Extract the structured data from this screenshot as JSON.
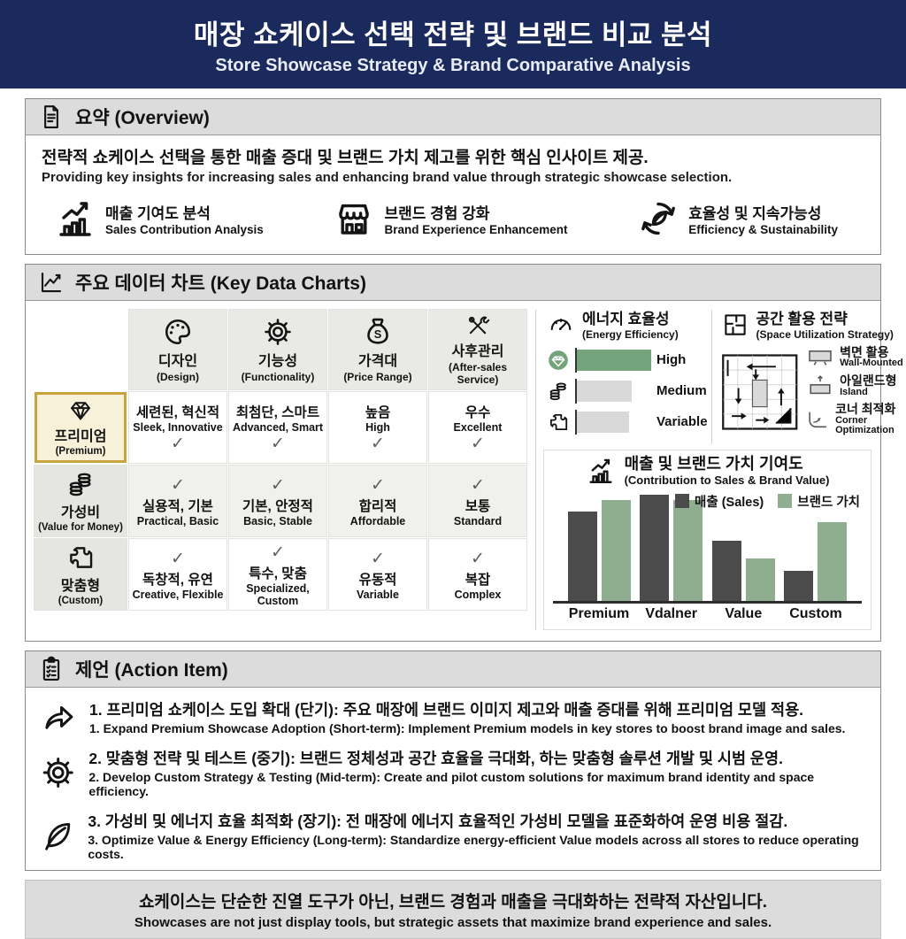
{
  "header": {
    "title_ko": "매장 쇼케이스 선택 전략 및 브랜드 비교 분석",
    "title_en": "Store Showcase Strategy & Brand Comparative Analysis"
  },
  "overview": {
    "heading": "요약 (Overview)",
    "desc_ko": "전략적 쇼케이스 선택을 통한 매출 증대 및 브랜드 가치 제고를 위한 핵심 인사이트 제공.",
    "desc_en": "Providing key insights for increasing sales and enhancing brand value through strategic showcase selection.",
    "features": [
      {
        "ko": "매출 기여도 분석",
        "en": "Sales Contribution Analysis"
      },
      {
        "ko": "브랜드 경험 강화",
        "en": "Brand Experience Enhancement"
      },
      {
        "ko": "효율성 및 지속가능성",
        "en": "Efficiency & Sustainability"
      }
    ]
  },
  "charts": {
    "heading": "주요 데이터 차트 (Key Data Charts)",
    "check_glyph": "✓",
    "table": {
      "columns": [
        {
          "ko": "디자인",
          "en": "(Design)"
        },
        {
          "ko": "기능성",
          "en": "(Functionality)"
        },
        {
          "ko": "가격대",
          "en": "(Price Range)"
        },
        {
          "ko": "사후관리",
          "en": "(After-sales Service)"
        }
      ],
      "rows": [
        {
          "ko": "프리미엄",
          "en": "(Premium)",
          "highlighted": true,
          "cells": [
            {
              "ko": "세련된, 혁신적",
              "en": "Sleek, Innovative"
            },
            {
              "ko": "최첨단, 스마트",
              "en": "Advanced, Smart"
            },
            {
              "ko": "높음",
              "en": "High"
            },
            {
              "ko": "우수",
              "en": "Excellent"
            }
          ]
        },
        {
          "ko": "가성비",
          "en": "(Value for Money)",
          "highlighted": false,
          "cells": [
            {
              "ko": "실용적, 기본",
              "en": "Practical, Basic"
            },
            {
              "ko": "기본, 안정적",
              "en": "Basic, Stable"
            },
            {
              "ko": "합리적",
              "en": "Affordable"
            },
            {
              "ko": "보통",
              "en": "Standard"
            }
          ]
        },
        {
          "ko": "맞춤형",
          "en": "(Custom)",
          "highlighted": false,
          "cells": [
            {
              "ko": "독창적, 유연",
              "en": "Creative, Flexible"
            },
            {
              "ko": "특수, 맞춤",
              "en": "Specialized, Custom"
            },
            {
              "ko": "유동적",
              "en": "Variable"
            },
            {
              "ko": "복잡",
              "en": "Complex"
            }
          ]
        }
      ]
    },
    "energy": {
      "title_ko": "에너지 효율성",
      "title_en": "(Energy Efficiency)"
    },
    "space": {
      "title_ko": "공간 활용 전략",
      "title_en": "(Space Utilization Strategy)",
      "legend": [
        {
          "ko": "벽면 활용",
          "en": "Wall-Mounted"
        },
        {
          "ko": "아일랜드형",
          "en": "Island"
        },
        {
          "ko": "코너 최적화",
          "en": "Corner Optimization"
        }
      ]
    },
    "contribution": {
      "title_ko": "매출 및 브랜드 가치 기여도",
      "title_en": "(Contribution to Sales & Brand Value)"
    }
  },
  "chart_data": [
    {
      "type": "bar",
      "orientation": "horizontal",
      "title": "에너지 효율성 (Energy Efficiency)",
      "categories": [
        "High",
        "Medium",
        "Variable"
      ],
      "values": [
        100,
        74,
        70
      ],
      "colors": [
        "#74a47c",
        "#d9d9d9",
        "#d9d9d9"
      ],
      "xlim": [
        0,
        100
      ],
      "grid": false
    },
    {
      "type": "bar",
      "title": "매출 및 브랜드 가치 기여도 (Contribution to Sales & Brand Value)",
      "categories": [
        "Premium",
        "Vdalner",
        "Value",
        "Custom"
      ],
      "series": [
        {
          "name": "매출 (Sales)",
          "values": [
            84,
            100,
            57,
            28
          ],
          "color": "#4b4b4b"
        },
        {
          "name": "브랜드 가치",
          "values": [
            95,
            95,
            40,
            74
          ],
          "color": "#8fae90"
        }
      ],
      "ylim": [
        0,
        100
      ],
      "legend_position": "top-right",
      "grid": false
    }
  ],
  "actions": {
    "heading": "제언 (Action Item)",
    "items": [
      {
        "ko": "1. 프리미엄 쇼케이스 도입 확대 (단기): 주요 매장에 브랜드 이미지 제고와 매출 증대를 위해 프리미엄 모델 적용.",
        "en": "1. Expand Premium Showcase Adoption (Short-term): Implement Premium models in key stores to boost brand image and sales."
      },
      {
        "ko": "2. 맞춤형 전략 및 테스트 (중기): 브랜드 정체성과 공간 효율을 극대화, 하는 맞춤형 솔루션 개발 및 시범 운영.",
        "en": "2. Develop Custom Strategy & Testing (Mid-term): Create and pilot custom solutions for maximum brand identity and space efficiency."
      },
      {
        "ko": "3. 가성비 및 에너지 효율 최적화 (장기): 전 매장에 에너지 효율적인 가성비 모델을 표준화하여 운영 비용 절감.",
        "en": "3. Optimize Value & Energy Efficiency (Long-term): Standardize energy-efficient Value models across all stores to reduce operating costs."
      }
    ]
  },
  "footer": {
    "ko": "쇼케이스는 단순한 진열 도구가 아닌, 브랜드 경험과 매출을 극대화하는 전략적 자산입니다.",
    "en": "Showcases are not just display tools, but strategic assets that maximize brand experience and sales."
  }
}
